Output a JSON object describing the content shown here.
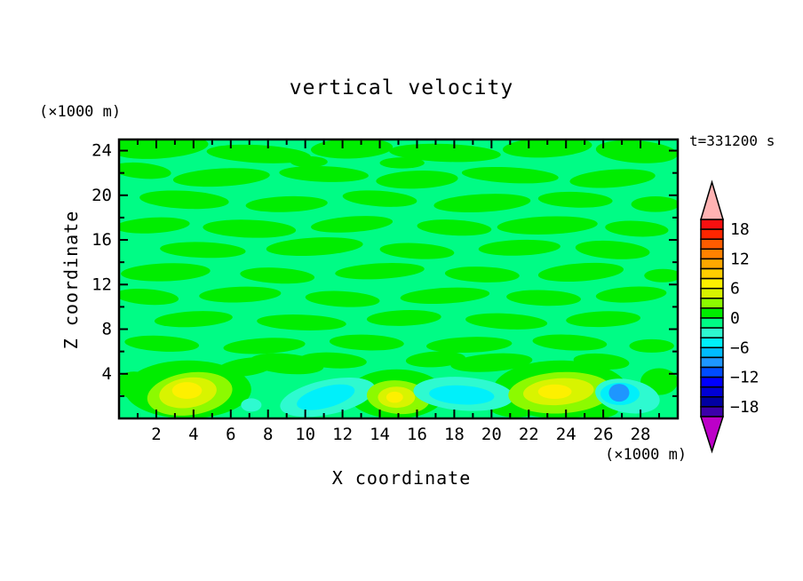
{
  "chart_data": {
    "type": "filled_contour",
    "title": "vertical velocity",
    "time_label": "t=331200 s",
    "xlabel": "X coordinate",
    "ylabel": "Z coordinate",
    "x_axis_unit": "(×1000 m)",
    "y_axis_unit": "(×1000 m)",
    "x_range": [
      0,
      30
    ],
    "z_range": [
      0,
      25
    ],
    "x_labeled_ticks": [
      2,
      4,
      6,
      8,
      10,
      12,
      14,
      16,
      18,
      20,
      22,
      24,
      26,
      28
    ],
    "x_minor_tick_step": 1,
    "z_labeled_ticks": [
      4,
      8,
      12,
      16,
      20,
      24
    ],
    "z_minor_tick_step": 2,
    "contour_interval": 2,
    "frame_color": "#000000",
    "colorbar": {
      "labels": [
        {
          "text": "18",
          "v": 18
        },
        {
          "text": "12",
          "v": 12
        },
        {
          "text": "6",
          "v": 6
        },
        {
          "text": "0",
          "v": 0
        },
        {
          "text": "−6",
          "v": -6
        },
        {
          "text": "−12",
          "v": -12
        },
        {
          "text": "−18",
          "v": -18
        }
      ],
      "over_color": "#ffb3b3",
      "under_color": "#bc00c8",
      "levels": [
        {
          "range": [
            18,
            20
          ],
          "color": "#f81010"
        },
        {
          "range": [
            16,
            18
          ],
          "color": "#ff2600"
        },
        {
          "range": [
            14,
            16
          ],
          "color": "#ff5c00"
        },
        {
          "range": [
            12,
            14
          ],
          "color": "#ff8200"
        },
        {
          "range": [
            10,
            12
          ],
          "color": "#ffa800"
        },
        {
          "range": [
            8,
            10
          ],
          "color": "#ffce00"
        },
        {
          "range": [
            6,
            8
          ],
          "color": "#fdf000"
        },
        {
          "range": [
            4,
            6
          ],
          "color": "#d8f400"
        },
        {
          "range": [
            2,
            4
          ],
          "color": "#8cfa00"
        },
        {
          "range": [
            0,
            2
          ],
          "color": "#00ed00"
        },
        {
          "range": [
            -2,
            0
          ],
          "color": "#00fc85"
        },
        {
          "range": [
            -4,
            -2
          ],
          "color": "#2efad0"
        },
        {
          "range": [
            -6,
            -4
          ],
          "color": "#00f0fa"
        },
        {
          "range": [
            -8,
            -6
          ],
          "color": "#00bcff"
        },
        {
          "range": [
            -10,
            -8
          ],
          "color": "#1e96ff"
        },
        {
          "range": [
            -12,
            -10
          ],
          "color": "#004cff"
        },
        {
          "range": [
            -14,
            -12
          ],
          "color": "#0000ff"
        },
        {
          "range": [
            -16,
            -14
          ],
          "color": "#0000d4"
        },
        {
          "range": [
            -18,
            -16
          ],
          "color": "#0000a2"
        },
        {
          "range": [
            -20,
            -18
          ],
          "color": "#3c00aa"
        }
      ]
    },
    "field": {
      "background_level_value": -1,
      "background_color": "#00fc85",
      "blobs": [
        [
          1,
          2.2,
          24.3,
          2.6,
          1.0,
          -4
        ],
        [
          1,
          7.5,
          23.7,
          2.8,
          0.8,
          3
        ],
        [
          1,
          12.5,
          24.2,
          2.2,
          0.9,
          -2
        ],
        [
          1,
          17.5,
          23.8,
          3.0,
          0.8,
          2
        ],
        [
          1,
          23.0,
          24.3,
          2.4,
          0.9,
          -3
        ],
        [
          1,
          27.8,
          23.9,
          2.2,
          1.0,
          4
        ],
        [
          1,
          0.6,
          24.6,
          0.9,
          0.6,
          0
        ],
        [
          1,
          15.2,
          22.9,
          1.2,
          0.5,
          0
        ],
        [
          1,
          10.2,
          23.0,
          1.0,
          0.5,
          0
        ],
        [
          1,
          1.2,
          22.2,
          1.6,
          0.7,
          5
        ],
        [
          1,
          5.5,
          21.6,
          2.6,
          0.8,
          -3
        ],
        [
          1,
          11.0,
          21.9,
          2.4,
          0.7,
          2
        ],
        [
          1,
          16.0,
          21.4,
          2.2,
          0.8,
          -2
        ],
        [
          1,
          21.0,
          21.8,
          2.6,
          0.7,
          3
        ],
        [
          1,
          26.5,
          21.5,
          2.3,
          0.8,
          -4
        ],
        [
          1,
          3.5,
          19.6,
          2.4,
          0.8,
          3
        ],
        [
          1,
          9.0,
          19.2,
          2.2,
          0.7,
          -2
        ],
        [
          1,
          14.0,
          19.7,
          2.0,
          0.7,
          4
        ],
        [
          1,
          19.5,
          19.3,
          2.6,
          0.8,
          -3
        ],
        [
          1,
          24.5,
          19.6,
          2.0,
          0.7,
          2
        ],
        [
          1,
          28.8,
          19.2,
          1.3,
          0.7,
          0
        ],
        [
          1,
          1.8,
          17.3,
          2.0,
          0.7,
          -3
        ],
        [
          1,
          7.0,
          17.0,
          2.5,
          0.8,
          2
        ],
        [
          1,
          12.5,
          17.4,
          2.2,
          0.7,
          -4
        ],
        [
          1,
          18.0,
          17.1,
          2.0,
          0.7,
          3
        ],
        [
          1,
          23.0,
          17.3,
          2.7,
          0.8,
          -2
        ],
        [
          1,
          27.8,
          17.0,
          1.7,
          0.7,
          3
        ],
        [
          1,
          4.5,
          15.1,
          2.3,
          0.7,
          2
        ],
        [
          1,
          10.5,
          15.4,
          2.6,
          0.8,
          -3
        ],
        [
          1,
          16.0,
          15.0,
          2.0,
          0.7,
          3
        ],
        [
          1,
          21.5,
          15.3,
          2.2,
          0.7,
          -2
        ],
        [
          1,
          26.5,
          15.1,
          2.0,
          0.8,
          4
        ],
        [
          1,
          2.5,
          13.1,
          2.4,
          0.8,
          -2
        ],
        [
          1,
          8.5,
          12.8,
          2.0,
          0.7,
          3
        ],
        [
          1,
          14.0,
          13.2,
          2.4,
          0.7,
          -3
        ],
        [
          1,
          19.5,
          12.9,
          2.0,
          0.7,
          2
        ],
        [
          1,
          24.8,
          13.1,
          2.3,
          0.8,
          -4
        ],
        [
          1,
          29.2,
          12.8,
          1.0,
          0.6,
          0
        ],
        [
          1,
          1.5,
          10.9,
          1.7,
          0.7,
          4
        ],
        [
          1,
          6.5,
          11.1,
          2.2,
          0.7,
          -2
        ],
        [
          1,
          12.0,
          10.7,
          2.0,
          0.7,
          3
        ],
        [
          1,
          17.5,
          11.0,
          2.4,
          0.7,
          -3
        ],
        [
          1,
          22.8,
          10.8,
          2.0,
          0.7,
          2
        ],
        [
          1,
          27.5,
          11.1,
          1.9,
          0.7,
          -3
        ],
        [
          1,
          4.0,
          8.9,
          2.1,
          0.7,
          -3
        ],
        [
          1,
          9.8,
          8.6,
          2.4,
          0.7,
          2
        ],
        [
          1,
          15.3,
          9.0,
          2.0,
          0.7,
          -2
        ],
        [
          1,
          20.8,
          8.7,
          2.2,
          0.7,
          3
        ],
        [
          1,
          26.0,
          8.9,
          2.0,
          0.7,
          -2
        ],
        [
          1,
          2.3,
          6.7,
          2.0,
          0.7,
          3
        ],
        [
          1,
          7.8,
          6.5,
          2.2,
          0.7,
          -3
        ],
        [
          1,
          13.3,
          6.8,
          2.0,
          0.7,
          2
        ],
        [
          1,
          18.8,
          6.6,
          2.3,
          0.7,
          -2
        ],
        [
          1,
          24.2,
          6.8,
          2.0,
          0.7,
          3
        ],
        [
          1,
          28.6,
          6.5,
          1.2,
          0.6,
          0
        ],
        [
          1,
          3.7,
          2.6,
          3.4,
          2.6,
          0
        ],
        [
          1,
          9.0,
          4.9,
          2.0,
          0.9,
          5
        ],
        [
          1,
          14.9,
          2.2,
          2.6,
          2.2,
          0
        ],
        [
          1,
          20.0,
          5.0,
          2.2,
          0.8,
          -4
        ],
        [
          1,
          23.7,
          2.6,
          3.6,
          2.6,
          0
        ],
        [
          1,
          6.8,
          4.6,
          1.6,
          0.8,
          -8
        ],
        [
          1,
          11.5,
          5.2,
          1.8,
          0.7,
          3
        ],
        [
          1,
          17.0,
          5.3,
          1.6,
          0.7,
          -3
        ],
        [
          1,
          25.9,
          5.1,
          1.5,
          0.7,
          4
        ],
        [
          1,
          29.0,
          3.3,
          1.0,
          1.2,
          0
        ],
        [
          1,
          0.8,
          3.0,
          1.0,
          1.2,
          0
        ],
        [
          1,
          21.3,
          1.0,
          1.4,
          0.9,
          0
        ],
        [
          1,
          25.6,
          0.7,
          1.2,
          0.7,
          0
        ],
        [
          3,
          3.8,
          2.2,
          2.3,
          1.9,
          -8
        ],
        [
          5,
          3.7,
          2.3,
          1.55,
          1.35,
          -8
        ],
        [
          7,
          3.65,
          2.5,
          0.8,
          0.75,
          0
        ],
        [
          -3,
          11.2,
          1.9,
          2.6,
          1.55,
          -12
        ],
        [
          -5,
          11.1,
          1.9,
          1.6,
          0.95,
          -15
        ],
        [
          3,
          15.0,
          1.9,
          1.7,
          1.5,
          5
        ],
        [
          5,
          14.9,
          1.9,
          1.0,
          0.95,
          0
        ],
        [
          7,
          14.8,
          1.9,
          0.45,
          0.5,
          0
        ],
        [
          -3,
          18.5,
          2.2,
          2.7,
          1.5,
          4
        ],
        [
          -5,
          18.4,
          2.1,
          1.75,
          0.85,
          3
        ],
        [
          3,
          23.7,
          2.3,
          2.8,
          1.85,
          -3
        ],
        [
          5,
          23.6,
          2.4,
          1.9,
          1.2,
          -4
        ],
        [
          7,
          23.4,
          2.4,
          0.9,
          0.65,
          0
        ],
        [
          -3,
          27.3,
          2.0,
          1.75,
          1.5,
          10
        ],
        [
          -5,
          26.9,
          2.2,
          1.05,
          1.0,
          0
        ],
        [
          -9,
          26.85,
          2.3,
          0.55,
          0.8,
          0
        ],
        [
          -3,
          7.1,
          1.2,
          0.55,
          0.6,
          0
        ]
      ]
    }
  }
}
